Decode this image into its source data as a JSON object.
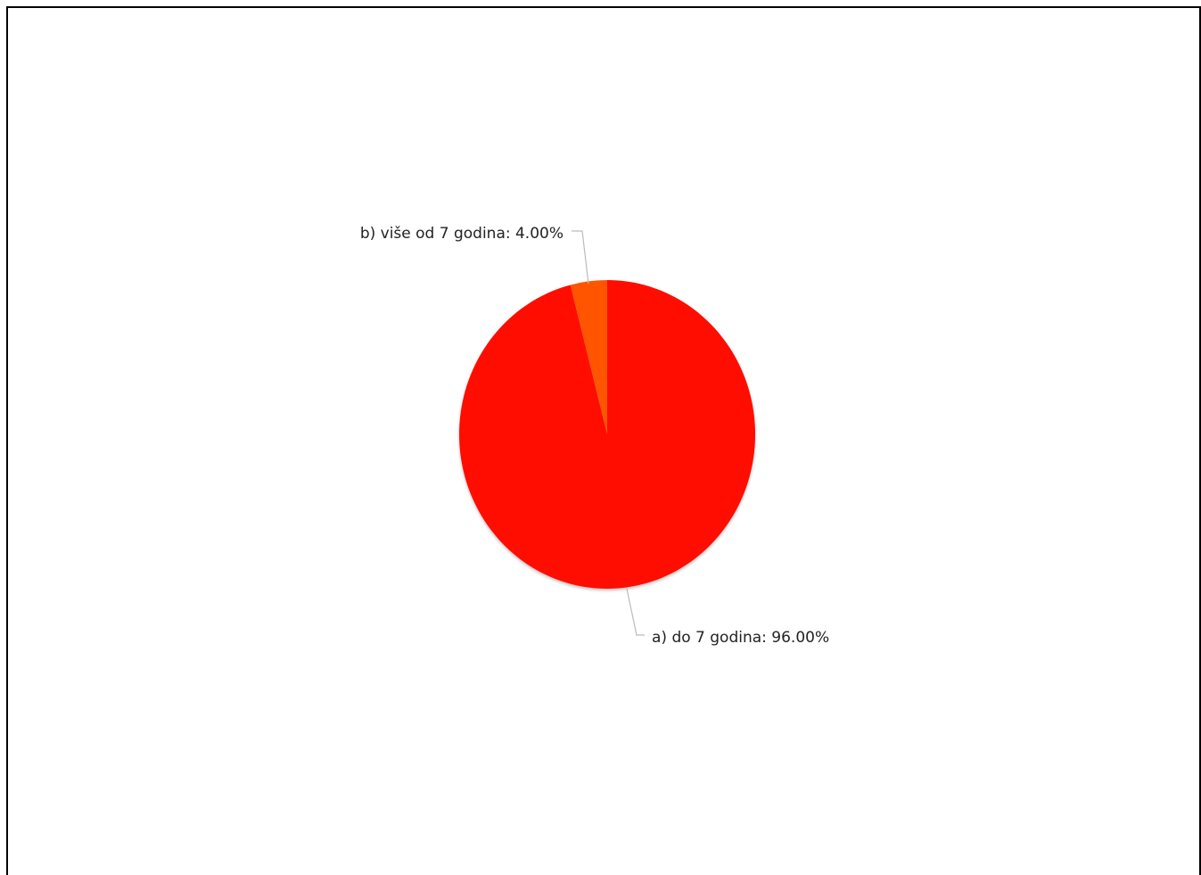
{
  "chart_data": {
    "type": "pie",
    "slices": [
      {
        "label": "a) do 7 godina: 96.00%",
        "value": 96.0,
        "color": "#ff1100"
      },
      {
        "label": "b) više od 7 godina: 4.00%",
        "value": 4.0,
        "color": "#ff5500"
      }
    ],
    "legend": "none"
  }
}
